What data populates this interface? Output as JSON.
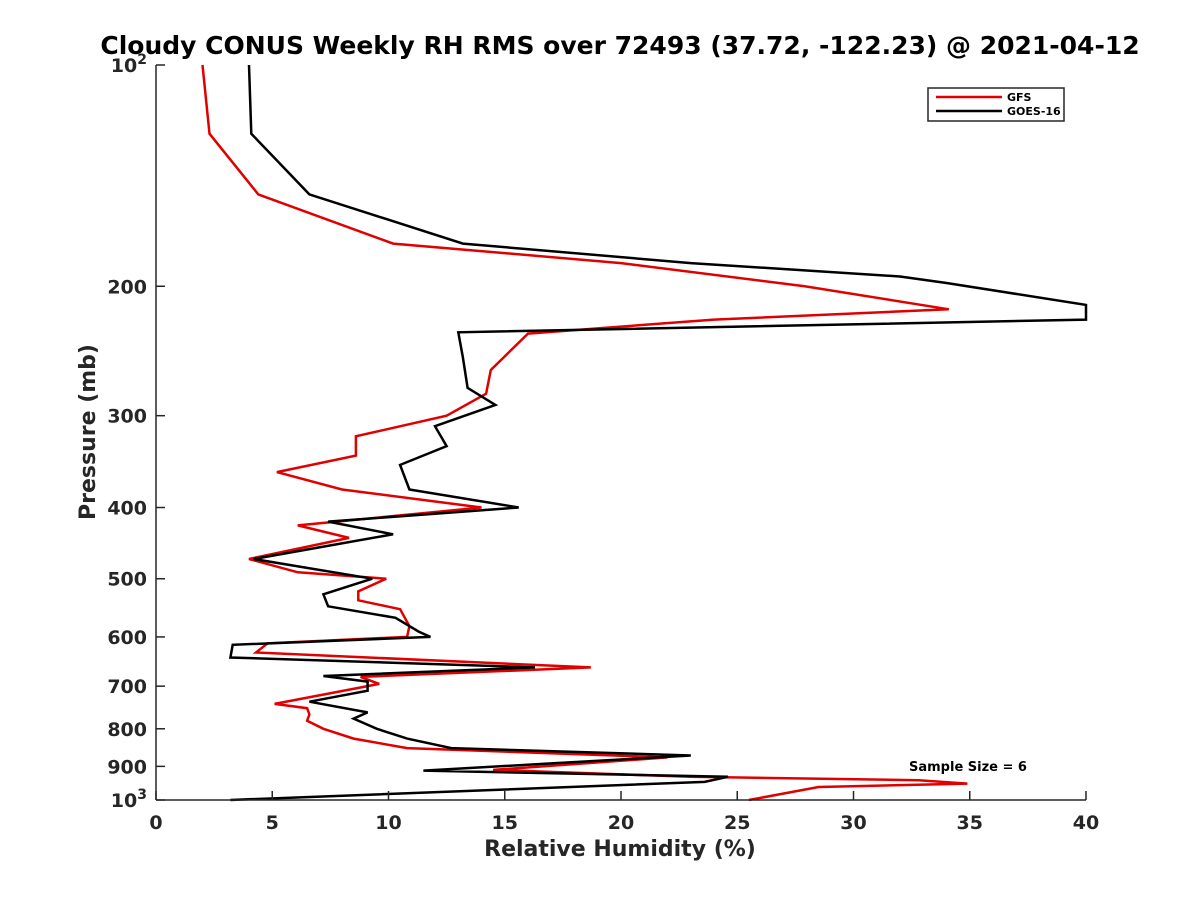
{
  "chart_data": {
    "type": "line",
    "title": "Cloudy CONUS Weekly RH RMS over 72493 (37.72, -122.23) @ 2021-04-12",
    "xlabel": "Relative Humidity (%)",
    "ylabel": "Pressure (mb)",
    "xlim": [
      0,
      40
    ],
    "ylim": [
      100,
      1000
    ],
    "y_scale": "log",
    "y_reversed": true,
    "grid": false,
    "legend_position": "top-right",
    "x_ticks": [
      0,
      5,
      10,
      15,
      20,
      25,
      30,
      35,
      40
    ],
    "y_ticks": [
      {
        "value": 100,
        "label": "10",
        "sup": "2"
      },
      {
        "value": 200,
        "label": "200",
        "sup": ""
      },
      {
        "value": 300,
        "label": "300",
        "sup": ""
      },
      {
        "value": 400,
        "label": "400",
        "sup": ""
      },
      {
        "value": 500,
        "label": "500",
        "sup": ""
      },
      {
        "value": 600,
        "label": "600",
        "sup": ""
      },
      {
        "value": 700,
        "label": "700",
        "sup": ""
      },
      {
        "value": 800,
        "label": "800",
        "sup": ""
      },
      {
        "value": 900,
        "label": "900",
        "sup": ""
      },
      {
        "value": 1000,
        "label": "10",
        "sup": "3"
      }
    ],
    "annotation": "Sample Size = 6",
    "series": [
      {
        "name": "GFS",
        "color": "#e00000",
        "points": [
          [
            2.0,
            100
          ],
          [
            2.3,
            124
          ],
          [
            4.4,
            150
          ],
          [
            10.2,
            175
          ],
          [
            20.0,
            186
          ],
          [
            27.9,
            200
          ],
          [
            34.1,
            215
          ],
          [
            24.0,
            222
          ],
          [
            16.0,
            232
          ],
          [
            14.4,
            260
          ],
          [
            14.2,
            280
          ],
          [
            12.5,
            300
          ],
          [
            8.6,
            320
          ],
          [
            8.6,
            340
          ],
          [
            5.2,
            358
          ],
          [
            8.0,
            378
          ],
          [
            14.0,
            400
          ],
          [
            6.1,
            423
          ],
          [
            8.3,
            440
          ],
          [
            4.0,
            470
          ],
          [
            6.1,
            490
          ],
          [
            9.9,
            500
          ],
          [
            8.7,
            520
          ],
          [
            8.7,
            535
          ],
          [
            10.5,
            550
          ],
          [
            10.9,
            580
          ],
          [
            10.8,
            600
          ],
          [
            4.8,
            612
          ],
          [
            4.3,
            630
          ],
          [
            18.7,
            660
          ],
          [
            8.8,
            680
          ],
          [
            9.6,
            695
          ],
          [
            8.6,
            705
          ],
          [
            5.1,
            740
          ],
          [
            6.5,
            750
          ],
          [
            6.6,
            765
          ],
          [
            6.5,
            780
          ],
          [
            7.2,
            800
          ],
          [
            8.5,
            825
          ],
          [
            10.8,
            850
          ],
          [
            22.0,
            875
          ],
          [
            14.5,
            910
          ],
          [
            23.0,
            930
          ],
          [
            32.8,
            940
          ],
          [
            34.9,
            950
          ],
          [
            28.5,
            960
          ],
          [
            25.5,
            1000
          ]
        ]
      },
      {
        "name": "GOES-16",
        "color": "#000000",
        "points": [
          [
            4.0,
            100
          ],
          [
            4.1,
            124
          ],
          [
            6.6,
            150
          ],
          [
            13.2,
            175
          ],
          [
            23.0,
            186
          ],
          [
            32.0,
            194
          ],
          [
            34.0,
            198
          ],
          [
            40.0,
            212
          ],
          [
            40.0,
            222
          ],
          [
            13.0,
            231
          ],
          [
            13.2,
            250
          ],
          [
            13.4,
            275
          ],
          [
            14.6,
            290
          ],
          [
            12.0,
            310
          ],
          [
            12.5,
            330
          ],
          [
            10.5,
            350
          ],
          [
            10.9,
            378
          ],
          [
            15.6,
            400
          ],
          [
            7.4,
            418
          ],
          [
            10.2,
            435
          ],
          [
            4.2,
            470
          ],
          [
            9.3,
            500
          ],
          [
            7.2,
            525
          ],
          [
            7.4,
            545
          ],
          [
            10.3,
            565
          ],
          [
            11.3,
            590
          ],
          [
            11.8,
            600
          ],
          [
            3.3,
            615
          ],
          [
            3.2,
            640
          ],
          [
            16.3,
            660
          ],
          [
            7.2,
            678
          ],
          [
            9.1,
            690
          ],
          [
            9.1,
            710
          ],
          [
            6.6,
            735
          ],
          [
            9.1,
            760
          ],
          [
            8.5,
            775
          ],
          [
            9.5,
            800
          ],
          [
            10.8,
            825
          ],
          [
            12.7,
            850
          ],
          [
            23.0,
            870
          ],
          [
            11.5,
            912
          ],
          [
            24.6,
            930
          ],
          [
            23.6,
            945
          ],
          [
            3.2,
            1000
          ]
        ]
      }
    ]
  }
}
